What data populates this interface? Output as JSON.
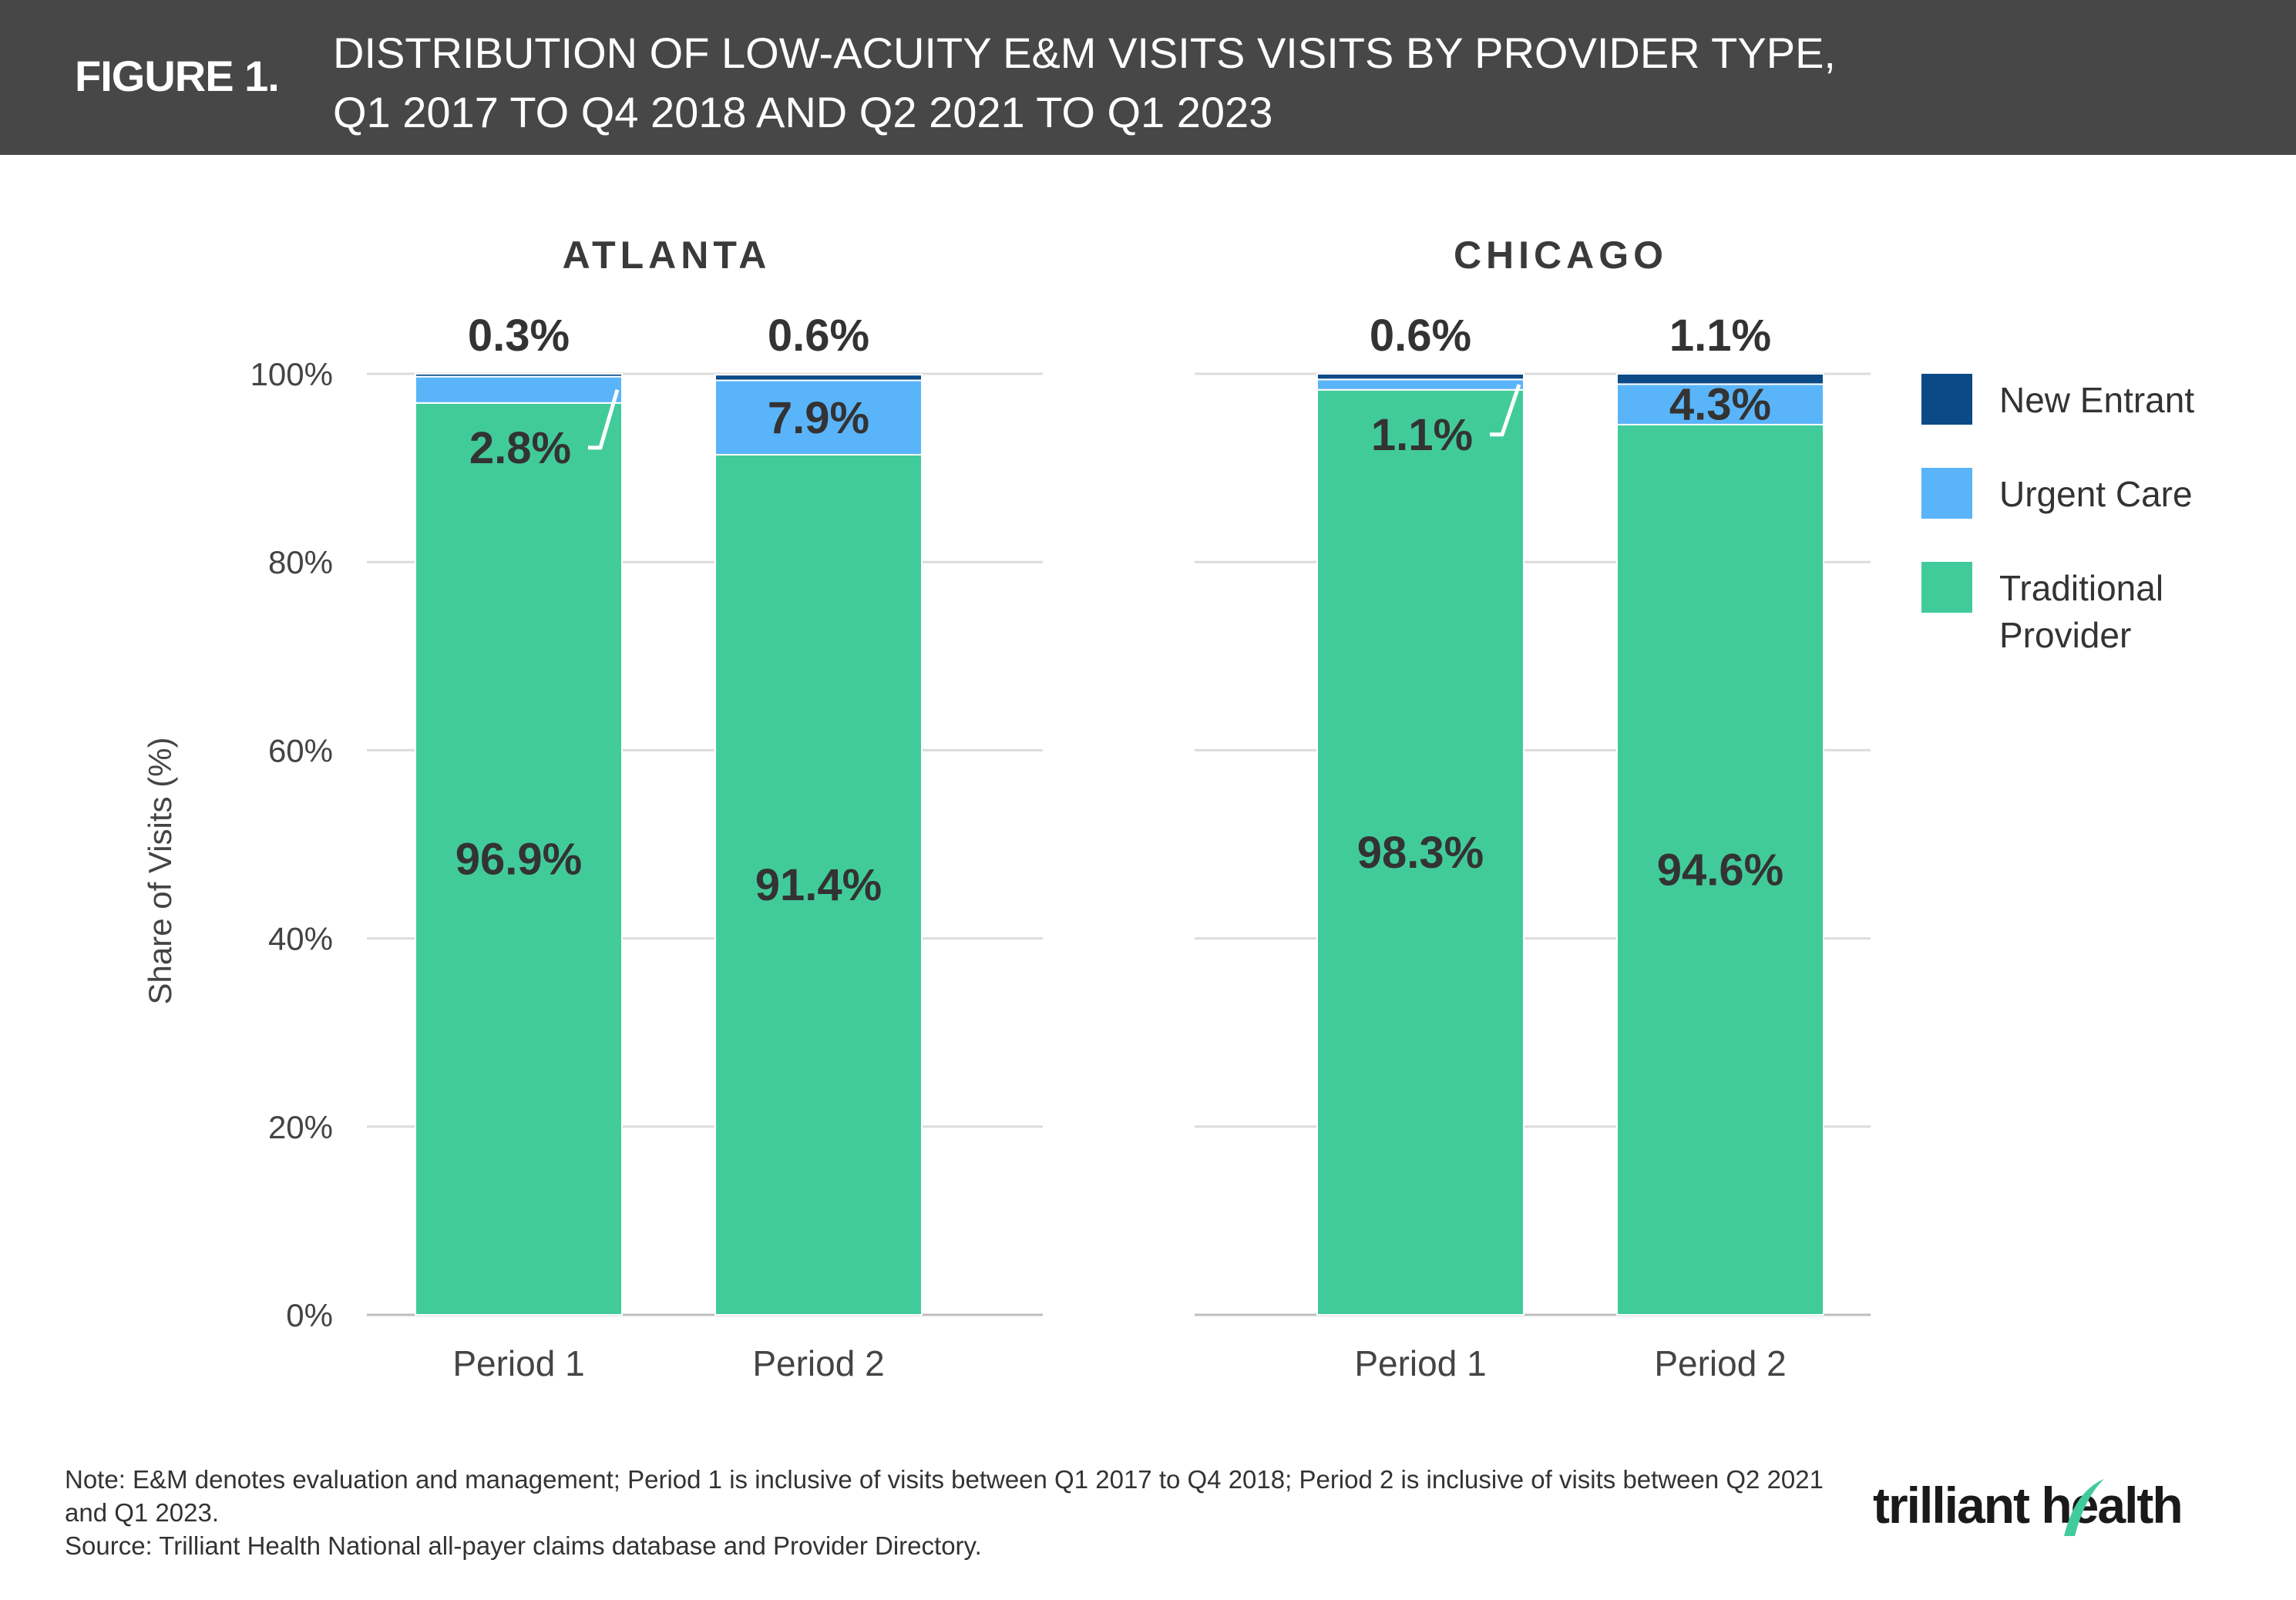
{
  "header": {
    "figure_label": "FIGURE 1.",
    "title_line1": "DISTRIBUTION OF LOW-ACUITY E&M VISITS VISITS BY PROVIDER TYPE,",
    "title_line2": "Q1 2017 TO Q4 2018 AND Q2 2021 TO Q1 2023"
  },
  "colors": {
    "header_bg": "#474747",
    "new_entrant": "#0b4a87",
    "urgent_care": "#5ab4f9",
    "traditional_provider": "#42cb9a",
    "label_text": "#333333",
    "logo_accent": "#42cb9a"
  },
  "chart_data": {
    "type": "bar",
    "stacked": true,
    "ylabel": "Share of  Visits (%)",
    "ylim": [
      0,
      100
    ],
    "yticks": [
      "0%",
      "20%",
      "40%",
      "60%",
      "80%",
      "100%"
    ],
    "legend": {
      "placement": "right",
      "items": [
        {
          "key": "new_entrant",
          "line1": "New Entrant",
          "line2": ""
        },
        {
          "key": "urgent_care",
          "line1": "Urgent Care",
          "line2": ""
        },
        {
          "key": "traditional_provider",
          "line1": "Traditional",
          "line2": "Provider"
        }
      ]
    },
    "panels": [
      {
        "title": "ATLANTA",
        "categories": [
          "Period 1",
          "Period 2"
        ],
        "series": [
          {
            "key": "traditional_provider",
            "name": "Traditional Provider",
            "values": [
              96.9,
              91.4
            ],
            "labels": [
              "96.9%",
              "91.4%"
            ]
          },
          {
            "key": "urgent_care",
            "name": "Urgent Care",
            "values": [
              2.8,
              7.9
            ],
            "labels": [
              "2.8%",
              "7.9%"
            ]
          },
          {
            "key": "new_entrant",
            "name": "New Entrant",
            "values": [
              0.3,
              0.6
            ],
            "labels": [
              "0.3%",
              "0.6%"
            ]
          }
        ]
      },
      {
        "title": "CHICAGO",
        "categories": [
          "Period 1",
          "Period 2"
        ],
        "series": [
          {
            "key": "traditional_provider",
            "name": "Traditional Provider",
            "values": [
              98.3,
              94.6
            ],
            "labels": [
              "98.3%",
              "94.6%"
            ]
          },
          {
            "key": "urgent_care",
            "name": "Urgent Care",
            "values": [
              1.1,
              4.3
            ],
            "labels": [
              "1.1%",
              "4.3%"
            ]
          },
          {
            "key": "new_entrant",
            "name": "New Entrant",
            "values": [
              0.6,
              1.1
            ],
            "labels": [
              "0.6%",
              "1.1%"
            ]
          }
        ]
      }
    ]
  },
  "note": {
    "line1": "Note: E&M denotes evaluation and management; Period 1 is inclusive of visits between Q1 2017 to Q4 2018; Period 2 is inclusive of visits between Q2 2021 and Q1 2023.",
    "line2": "Source: Trilliant Health National all-payer claims database and Provider Directory."
  },
  "logo": {
    "text": "trilliant health"
  }
}
